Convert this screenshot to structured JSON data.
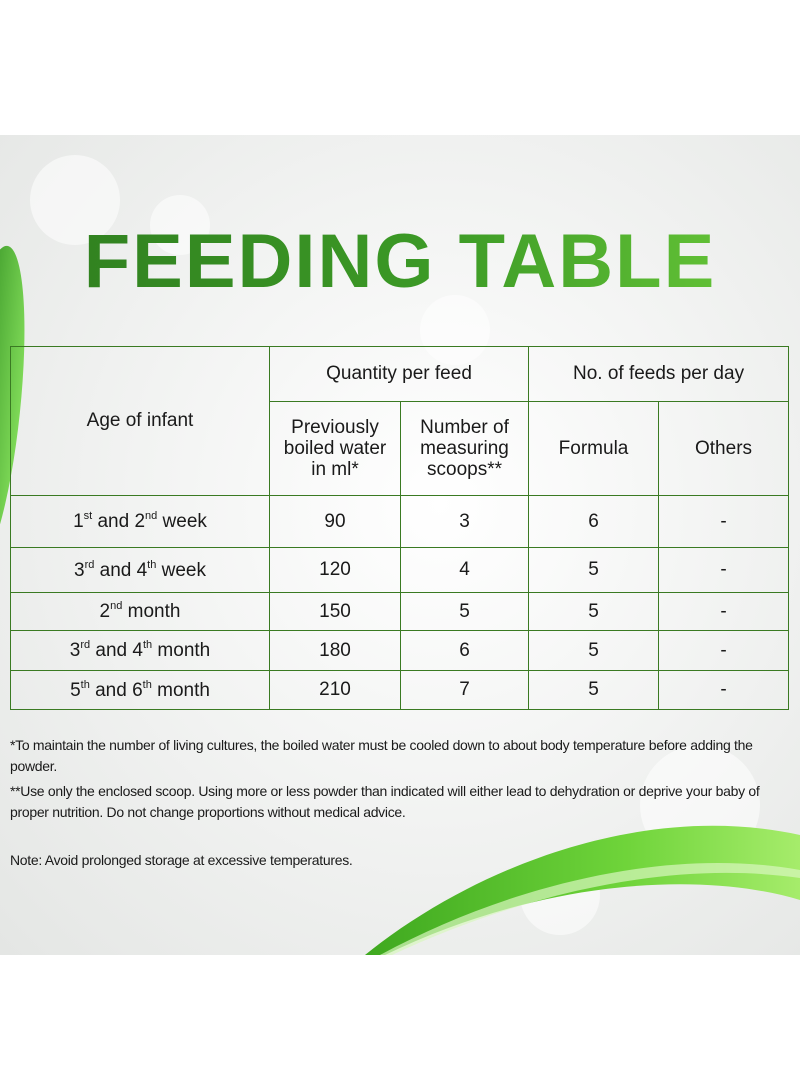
{
  "title": "FEEDING TABLE",
  "colors": {
    "title_start": "#2f7d1f",
    "title_end": "#6ccb3a",
    "table_border": "#3a7a22",
    "leaf": "#4caf2e"
  },
  "table": {
    "age_header": "Age of infant",
    "quantity_header": "Quantity per feed",
    "feeds_header": "No. of feeds per day",
    "water_header": [
      "Previously",
      "boiled water",
      "in ml*"
    ],
    "scoops_header": [
      "Number of",
      "measuring",
      "scoops**"
    ],
    "formula_header": "Formula",
    "others_header": "Others",
    "rows": [
      {
        "age": [
          "1",
          "st",
          " and 2",
          "nd",
          " week"
        ],
        "water": "90",
        "scoops": "3",
        "formula": "6",
        "others": "-"
      },
      {
        "age": [
          "3",
          "rd",
          " and 4",
          "th",
          " week"
        ],
        "water": "120",
        "scoops": "4",
        "formula": "5",
        "others": "-"
      },
      {
        "age": [
          "2",
          "nd",
          " month",
          "",
          ""
        ],
        "water": "150",
        "scoops": "5",
        "formula": "5",
        "others": "-"
      },
      {
        "age": [
          "3",
          "rd",
          " and 4",
          "th",
          " month"
        ],
        "water": "180",
        "scoops": "6",
        "formula": "5",
        "others": "-"
      },
      {
        "age": [
          "5",
          "th",
          " and 6",
          "th",
          " month"
        ],
        "water": "210",
        "scoops": "7",
        "formula": "5",
        "others": "-"
      }
    ]
  },
  "notes": {
    "note1": "*To maintain the number of living cultures, the boiled water must be cooled down to about body temperature before adding the powder.",
    "note2": "**Use only the enclosed scoop. Using more or less powder than indicated will either lead to dehydration or deprive your baby of proper nutrition. Do not change proportions without medical advice.",
    "note3": "Note: Avoid prolonged storage at excessive temperatures."
  }
}
